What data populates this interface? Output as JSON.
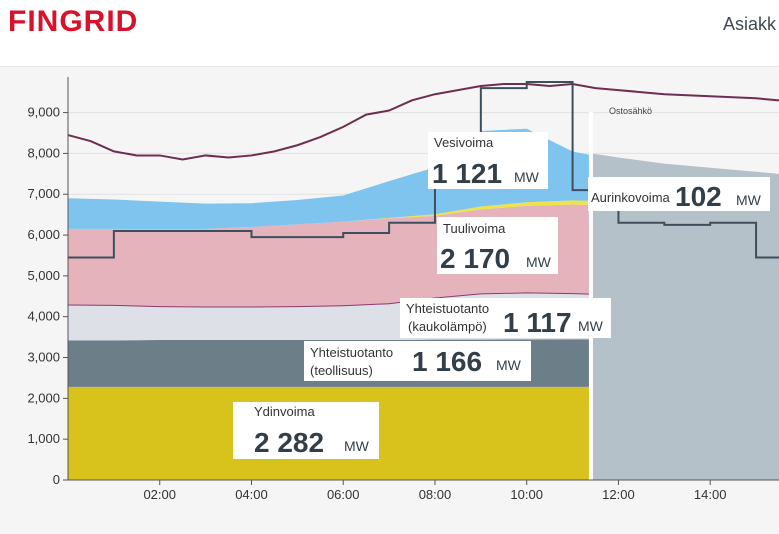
{
  "header": {
    "logo": "FINGRID",
    "nav_link": "Asiakk"
  },
  "colors": {
    "ydinvoima": "#d8c21c",
    "teollisuus": "#6c7e88",
    "kaukolampo": "#dde0e6",
    "tuulivoima": "#e5b3bc",
    "aurinkovoima": "#efe34a",
    "vesivoima": "#7ec4ee",
    "forecast": "#b4c1c9",
    "consumption": "#6e2e4e",
    "ostosahko": "#3d4f5d"
  },
  "chart_data": {
    "type": "area",
    "title": "",
    "xlabel": "",
    "ylabel": "",
    "x_range_hours": [
      0,
      15.5
    ],
    "ylim": [
      0,
      9700
    ],
    "now_hour": 11.4,
    "x_ticks": [
      "02:00",
      "04:00",
      "06:00",
      "08:00",
      "10:00",
      "12:00",
      "14:00"
    ],
    "x_tick_hours": [
      2,
      4,
      6,
      8,
      10,
      12,
      14
    ],
    "y_ticks": [
      "0",
      "1,000",
      "2,000",
      "3,000",
      "4,000",
      "5,000",
      "6,000",
      "7,000",
      "8,000",
      "9,000"
    ],
    "y_tick_values": [
      0,
      1000,
      2000,
      3000,
      4000,
      5000,
      6000,
      7000,
      8000,
      9000
    ],
    "stack_x": [
      0,
      1,
      2,
      3,
      4,
      5,
      6,
      7,
      8,
      9,
      10,
      11,
      11.4
    ],
    "series": [
      {
        "name": "Ydinvoima",
        "values": [
          2280,
          2280,
          2280,
          2280,
          2280,
          2280,
          2280,
          2280,
          2280,
          2280,
          2280,
          2282,
          2282
        ]
      },
      {
        "name": "Yhteistuotanto (teollisuus)",
        "values": [
          1140,
          1140,
          1150,
          1150,
          1150,
          1150,
          1150,
          1150,
          1160,
          1160,
          1165,
          1166,
          1166
        ]
      },
      {
        "name": "Yhteistuotanto (kaukolämpö)",
        "values": [
          880,
          870,
          830,
          820,
          820,
          830,
          850,
          900,
          1030,
          1130,
          1150,
          1130,
          1117
        ]
      },
      {
        "name": "Tuulivoima",
        "values": [
          1850,
          1860,
          1880,
          1900,
          1950,
          2000,
          2050,
          2080,
          2000,
          2060,
          2120,
          2170,
          2170
        ]
      },
      {
        "name": "Aurinkovoima",
        "values": [
          0,
          0,
          0,
          0,
          0,
          0,
          0,
          10,
          40,
          70,
          90,
          100,
          102
        ]
      },
      {
        "name": "Vesivoima",
        "values": [
          750,
          720,
          680,
          620,
          580,
          600,
          640,
          900,
          1150,
          1850,
          1800,
          1200,
          1121
        ]
      }
    ],
    "consumption": {
      "x": [
        0,
        0.5,
        1,
        1.5,
        2,
        2.5,
        3,
        3.5,
        4,
        4.5,
        5,
        5.5,
        6,
        6.5,
        7,
        7.5,
        8,
        8.5,
        9,
        9.5,
        10,
        10.5,
        11,
        11.5,
        12,
        13,
        14,
        15,
        15.5
      ],
      "values": [
        8450,
        8300,
        8050,
        7950,
        7950,
        7850,
        7950,
        7900,
        7950,
        8050,
        8200,
        8400,
        8650,
        8950,
        9050,
        9300,
        9450,
        9550,
        9650,
        9700,
        9700,
        9650,
        9700,
        9600,
        9550,
        9450,
        9400,
        9350,
        9300
      ]
    },
    "ostosahko": {
      "label": "Ostosähkö",
      "x": [
        0,
        1,
        1,
        4,
        4,
        6,
        6,
        7,
        7,
        8,
        8,
        9,
        9,
        10,
        10,
        11,
        11,
        12,
        12,
        13,
        13,
        14,
        14,
        15,
        15,
        15.5
      ],
      "values": [
        5450,
        5450,
        6100,
        6100,
        5950,
        5950,
        6050,
        6050,
        6300,
        6300,
        7200,
        7200,
        9600,
        9600,
        9750,
        9750,
        7100,
        7100,
        6300,
        6300,
        6250,
        6250,
        6300,
        6300,
        5450,
        5450
      ]
    },
    "forecast": {
      "x": [
        11.4,
        12,
        13,
        14,
        15,
        15.5
      ],
      "values": [
        8000,
        7900,
        7750,
        7650,
        7550,
        7500
      ]
    }
  },
  "labels": {
    "vesivoima": {
      "name": "Vesivoima",
      "value": "1 121",
      "unit": "MW"
    },
    "tuulivoima": {
      "name": "Tuulivoima",
      "value": "2 170",
      "unit": "MW"
    },
    "aurinkovoima": {
      "name": "Aurinkovoima",
      "value": "102",
      "unit": "MW"
    },
    "kaukolampo": {
      "name_line1": "Yhteistuotanto",
      "name_line2": "(kaukolämpö)",
      "value": "1 117",
      "unit": "MW"
    },
    "teollisuus": {
      "name_line1": "Yhteistuotanto",
      "name_line2": "(teollisuus)",
      "value": "1 166",
      "unit": "MW"
    },
    "ydinvoima": {
      "name": "Ydinvoima",
      "value": "2 282",
      "unit": "MW"
    }
  }
}
